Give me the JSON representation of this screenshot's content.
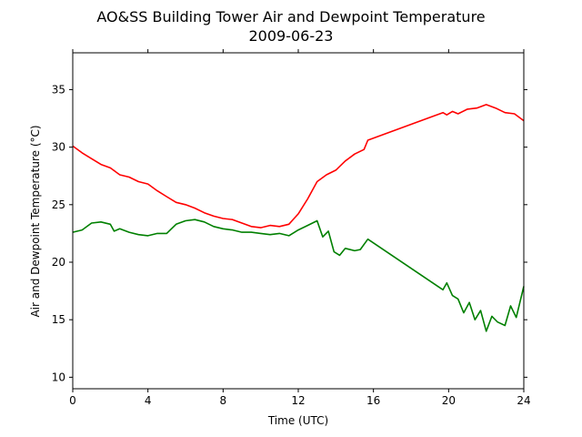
{
  "chart_data": {
    "type": "line",
    "title": "AO&SS Building Tower Air and Dewpoint Temperature",
    "subtitle": "2009-06-23",
    "xlabel": "Time (UTC)",
    "ylabel": "Air and Dewpoint Temperature (°C)",
    "xlim": [
      0,
      24
    ],
    "ylim": [
      9,
      38.2
    ],
    "xticks": [
      0,
      4,
      8,
      12,
      16,
      20,
      24
    ],
    "yticks": [
      10,
      15,
      20,
      25,
      30,
      35
    ],
    "grid": false,
    "series": [
      {
        "color": "#ff0000",
        "x": [
          0,
          0.5,
          1,
          1.5,
          2,
          2.5,
          3,
          3.5,
          4,
          4.5,
          5,
          5.5,
          6,
          6.5,
          7,
          7.5,
          8,
          8.5,
          9,
          9.5,
          10,
          10.5,
          11,
          11.5,
          12,
          12.5,
          13,
          13.5,
          14,
          14.5,
          15,
          15.5,
          15.7,
          19.7,
          19.9,
          20.2,
          20.5,
          21,
          21.5,
          22,
          22.5,
          23,
          23.5,
          24
        ],
        "y": [
          30.1,
          29.5,
          29.0,
          28.5,
          28.2,
          27.6,
          27.4,
          27.0,
          26.8,
          26.2,
          25.7,
          25.2,
          25.0,
          24.7,
          24.3,
          24.0,
          23.8,
          23.7,
          23.4,
          23.1,
          23.0,
          23.2,
          23.1,
          23.3,
          24.2,
          25.5,
          27.0,
          27.6,
          28.0,
          28.8,
          29.4,
          29.8,
          30.6,
          33.0,
          32.8,
          33.1,
          32.9,
          33.3,
          33.4,
          33.7,
          33.4,
          33.0,
          32.9,
          32.3
        ]
      },
      {
        "color": "#008000",
        "x": [
          0,
          0.5,
          1,
          1.5,
          2,
          2.2,
          2.5,
          3,
          3.5,
          4,
          4.5,
          5,
          5.5,
          6,
          6.5,
          7,
          7.5,
          8,
          8.5,
          9,
          9.5,
          10,
          10.5,
          11,
          11.5,
          12,
          12.5,
          13,
          13.3,
          13.6,
          13.9,
          14.2,
          14.5,
          15,
          15.3,
          15.7,
          19.7,
          19.9,
          20.2,
          20.5,
          20.8,
          21.1,
          21.4,
          21.7,
          22,
          22.3,
          22.6,
          23,
          23.3,
          23.6,
          24
        ],
        "y": [
          22.6,
          22.8,
          23.4,
          23.5,
          23.3,
          22.7,
          22.9,
          22.6,
          22.4,
          22.3,
          22.5,
          22.5,
          23.3,
          23.6,
          23.7,
          23.5,
          23.1,
          22.9,
          22.8,
          22.6,
          22.6,
          22.5,
          22.4,
          22.5,
          22.3,
          22.8,
          23.2,
          23.6,
          22.2,
          22.7,
          20.9,
          20.6,
          21.2,
          21.0,
          21.1,
          22.0,
          17.6,
          18.2,
          17.1,
          16.8,
          15.6,
          16.5,
          15.0,
          15.8,
          14.0,
          15.3,
          14.8,
          14.5,
          16.2,
          15.2,
          17.9
        ]
      }
    ]
  }
}
